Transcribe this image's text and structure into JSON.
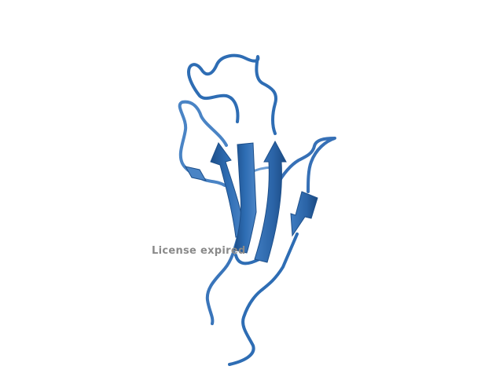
{
  "viewer": {
    "watermark": "License expired",
    "background_color": "#ffffff",
    "ribbon_color": "#2e6db4",
    "ribbon_dark": "#1d4f8a",
    "ribbon_light": "#5b93cf",
    "watermark_color": "#8a8a8a"
  }
}
